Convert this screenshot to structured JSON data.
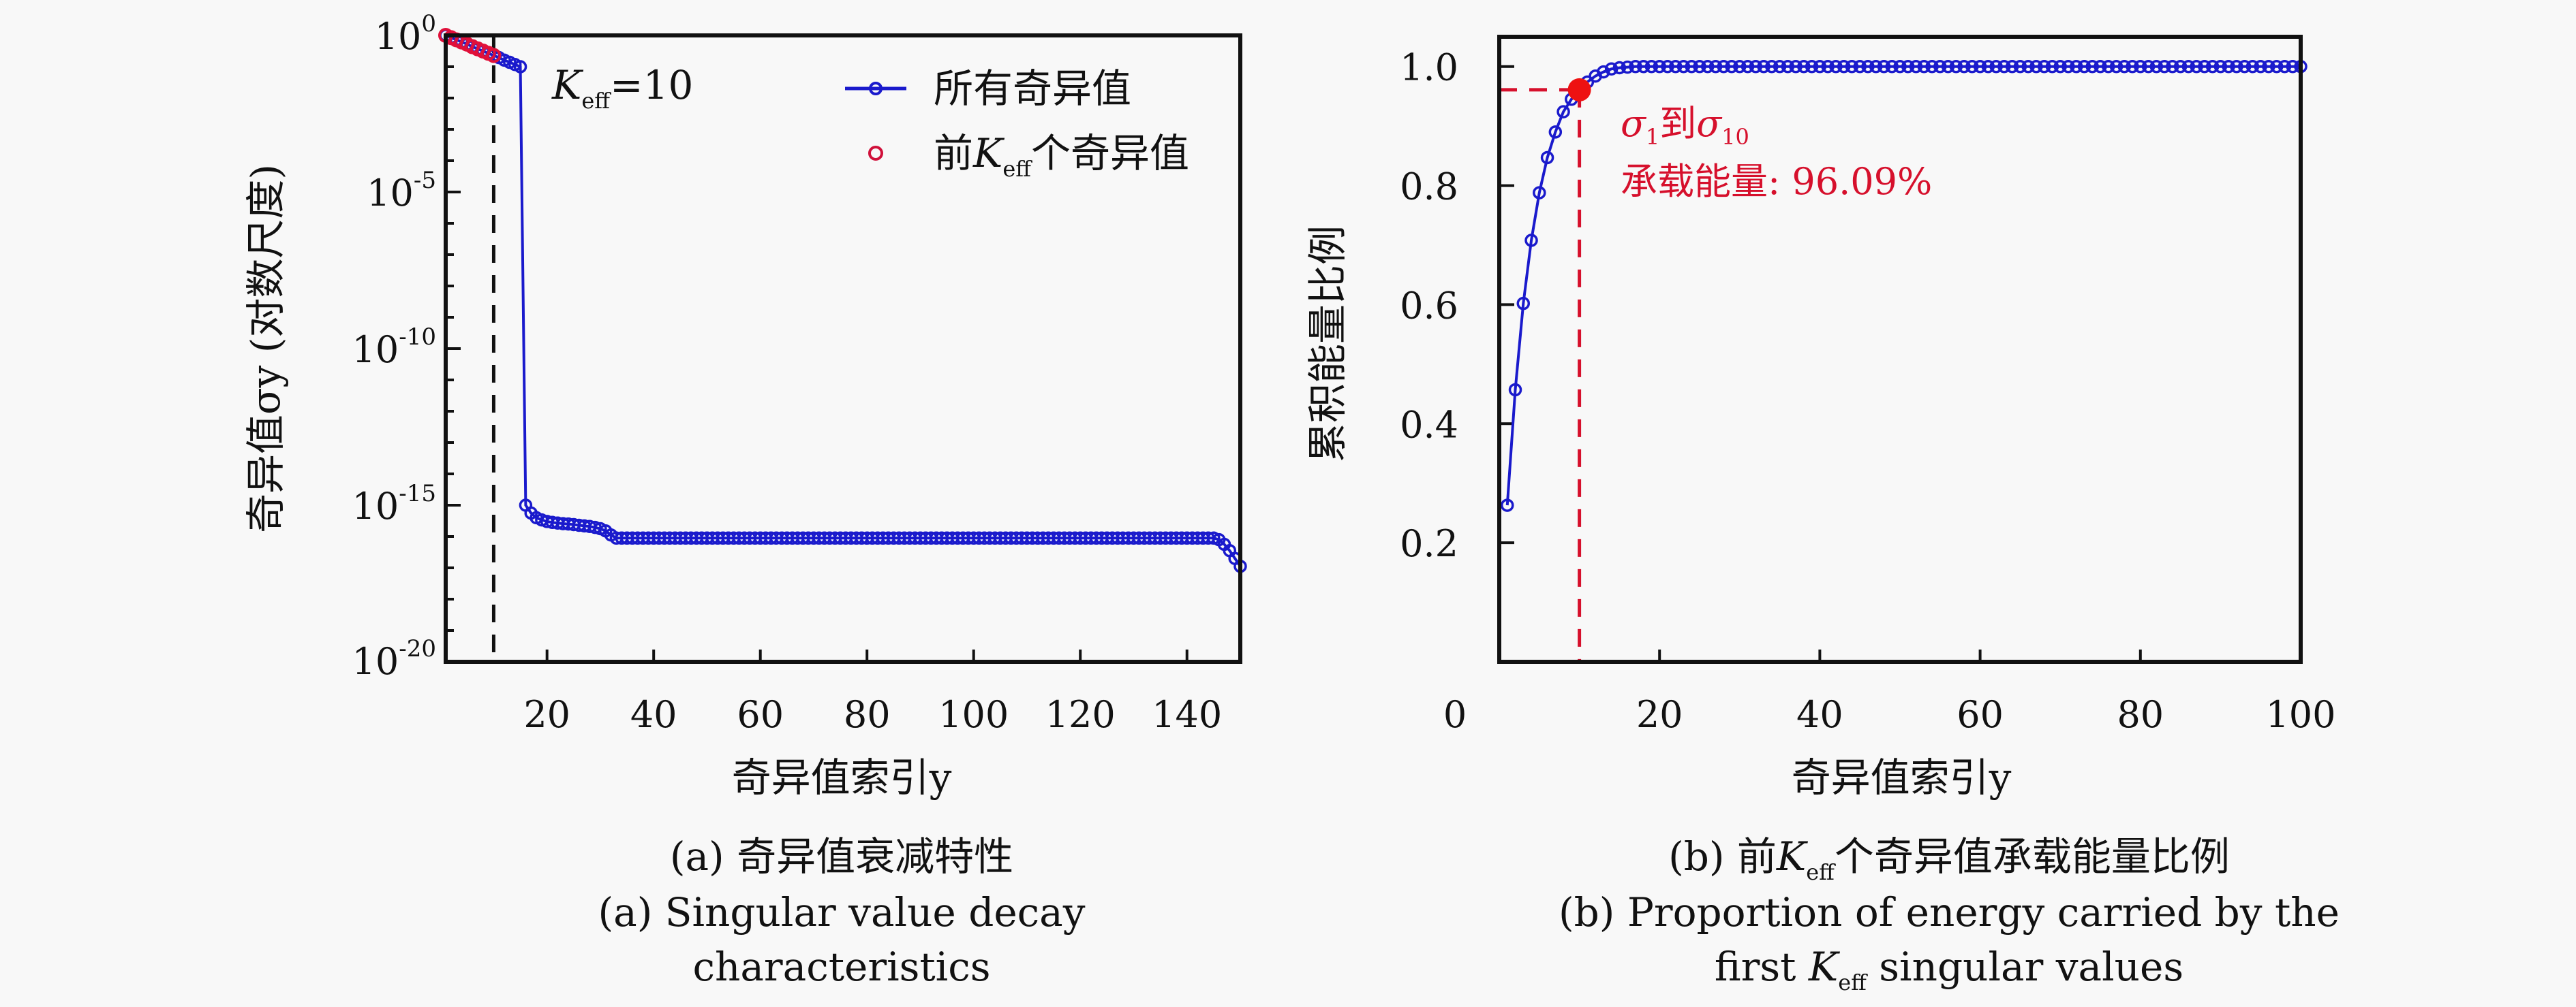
{
  "figure": {
    "background": "#f8f8f8",
    "colors": {
      "all_series": "#1a1acc",
      "top_k": "#e0103a",
      "annotation": "#d6102c",
      "axis": "#111111"
    }
  },
  "chart_data": [
    {
      "id": "a",
      "type": "line",
      "title": "",
      "xlabel": "奇异值索引y",
      "ylabel": "奇异值σy (对数尺度)",
      "yscale": "log",
      "xlim": [
        1,
        150
      ],
      "ylim_log10": [
        -20,
        0
      ],
      "xticks": [
        20,
        40,
        60,
        80,
        100,
        120,
        140
      ],
      "xtick_labels": [
        "20",
        "40",
        "60",
        "80",
        "100",
        "120",
        "140"
      ],
      "yticks_log10": [
        0,
        -5,
        -10,
        -15,
        -20
      ],
      "ytick_labels": [
        {
          "base": "10",
          "exp": "0"
        },
        {
          "base": "10",
          "exp": "-5"
        },
        {
          "base": "10",
          "exp": "-10"
        },
        {
          "base": "10",
          "exp": "-15"
        },
        {
          "base": "10",
          "exp": "-20"
        }
      ],
      "grid": false,
      "legend_position": "top-right",
      "annotation": {
        "text": "Keff=10",
        "k_label": "K",
        "k_sub": "eff",
        "value": "=10"
      },
      "vline_x": 10,
      "k_eff": 10,
      "series": [
        {
          "name": "所有奇异值",
          "legend_label": "所有奇异值",
          "marker": "open-circle",
          "line": true,
          "x_start": 1,
          "log10_values": [
            0.0,
            -0.07,
            -0.14,
            -0.21,
            -0.28,
            -0.36,
            -0.43,
            -0.5,
            -0.57,
            -0.64,
            -0.71,
            -0.79,
            -0.86,
            -0.93,
            -1.0,
            -15.0,
            -15.25,
            -15.4,
            -15.47,
            -15.52,
            -15.55,
            -15.57,
            -15.59,
            -15.6,
            -15.62,
            -15.64,
            -15.66,
            -15.68,
            -15.71,
            -15.75,
            -15.82,
            -15.95,
            -16.05,
            -16.05,
            -16.05,
            -16.05,
            -16.05,
            -16.05,
            -16.05,
            -16.05,
            -16.05,
            -16.05,
            -16.05,
            -16.05,
            -16.05,
            -16.05,
            -16.05,
            -16.05,
            -16.05,
            -16.05,
            -16.05,
            -16.05,
            -16.05,
            -16.05,
            -16.05,
            -16.05,
            -16.05,
            -16.05,
            -16.05,
            -16.05,
            -16.05,
            -16.05,
            -16.05,
            -16.05,
            -16.05,
            -16.05,
            -16.05,
            -16.05,
            -16.05,
            -16.05,
            -16.05,
            -16.05,
            -16.05,
            -16.05,
            -16.05,
            -16.05,
            -16.05,
            -16.05,
            -16.05,
            -16.05,
            -16.05,
            -16.05,
            -16.05,
            -16.05,
            -16.05,
            -16.05,
            -16.05,
            -16.05,
            -16.05,
            -16.05,
            -16.05,
            -16.05,
            -16.05,
            -16.05,
            -16.05,
            -16.05,
            -16.05,
            -16.05,
            -16.05,
            -16.05,
            -16.05,
            -16.05,
            -16.05,
            -16.05,
            -16.05,
            -16.05,
            -16.05,
            -16.05,
            -16.05,
            -16.05,
            -16.05,
            -16.05,
            -16.05,
            -16.05,
            -16.05,
            -16.05,
            -16.05,
            -16.05,
            -16.05,
            -16.05,
            -16.05,
            -16.05,
            -16.05,
            -16.05,
            -16.05,
            -16.05,
            -16.05,
            -16.05,
            -16.05,
            -16.05,
            -16.05,
            -16.05,
            -16.05,
            -16.05,
            -16.05,
            -16.05,
            -16.05,
            -16.05,
            -16.05,
            -16.05,
            -16.05,
            -16.05,
            -16.05,
            -16.05,
            -16.05,
            -16.1,
            -16.25,
            -16.45,
            -16.7,
            -16.95
          ]
        },
        {
          "name": "前Keff个奇异值",
          "legend_label_prefix": "前",
          "legend_label_k": "K",
          "legend_label_sub": "eff",
          "legend_label_suffix": "个奇异值",
          "marker": "open-circle",
          "line": false,
          "x_start": 1,
          "log10_values": [
            0.0,
            -0.07,
            -0.14,
            -0.21,
            -0.28,
            -0.36,
            -0.43,
            -0.5,
            -0.57,
            -0.64
          ]
        }
      ],
      "caption_cn": {
        "prefix": "(a)",
        "text": "奇异值衰减特性"
      },
      "caption_en_line1": "(a) Singular value decay",
      "caption_en_line2": "characteristics"
    },
    {
      "id": "b",
      "type": "line",
      "title": "",
      "xlabel": "奇异值索引y",
      "ylabel": "累积能量比例",
      "xlim": [
        0,
        100
      ],
      "ylim": [
        0,
        1.05
      ],
      "xticks": [
        0,
        20,
        40,
        60,
        80,
        100
      ],
      "xtick_labels": [
        "0",
        "20",
        "40",
        "60",
        "80",
        "100"
      ],
      "yticks": [
        0.2,
        0.4,
        0.6,
        0.8,
        1.0
      ],
      "ytick_labels": [
        "0.2",
        "0.4",
        "0.6",
        "0.8",
        "1.0"
      ],
      "grid": false,
      "series": [
        {
          "name": "累积能量比例",
          "marker": "open-circle",
          "x_start": 1,
          "values": [
            0.263,
            0.457,
            0.602,
            0.708,
            0.788,
            0.847,
            0.89,
            0.924,
            0.945,
            0.9609,
            0.974,
            0.984,
            0.991,
            0.996,
            0.998,
            0.999,
            1.0,
            1.0,
            1.0,
            1.0,
            1.0,
            1.0,
            1.0,
            1.0,
            1.0,
            1.0,
            1.0,
            1.0,
            1.0,
            1.0,
            1.0,
            1.0,
            1.0,
            1.0,
            1.0,
            1.0,
            1.0,
            1.0,
            1.0,
            1.0,
            1.0,
            1.0,
            1.0,
            1.0,
            1.0,
            1.0,
            1.0,
            1.0,
            1.0,
            1.0,
            1.0,
            1.0,
            1.0,
            1.0,
            1.0,
            1.0,
            1.0,
            1.0,
            1.0,
            1.0,
            1.0,
            1.0,
            1.0,
            1.0,
            1.0,
            1.0,
            1.0,
            1.0,
            1.0,
            1.0,
            1.0,
            1.0,
            1.0,
            1.0,
            1.0,
            1.0,
            1.0,
            1.0,
            1.0,
            1.0,
            1.0,
            1.0,
            1.0,
            1.0,
            1.0,
            1.0,
            1.0,
            1.0,
            1.0,
            1.0,
            1.0,
            1.0,
            1.0,
            1.0,
            1.0,
            1.0,
            1.0,
            1.0,
            1.0,
            1.0
          ]
        }
      ],
      "highlight_point": {
        "x": 10,
        "y": 0.9609
      },
      "annotation": {
        "line1_sigma": "σ",
        "line1_sub1": "1",
        "line1_mid": "到",
        "line1_sub2": "10",
        "line2": "承载能量: 96.09%"
      },
      "caption_cn": {
        "prefix": "(b) 前",
        "k": "K",
        "k_sub": "eff",
        "text": "个奇异值承载能量比例"
      },
      "caption_en_line1": "(b) Proportion of energy carried by the",
      "caption_en_line2_prefix": "first ",
      "caption_en_line2_k": "K",
      "caption_en_line2_sub": "eff",
      "caption_en_line2_suffix": " singular values"
    }
  ]
}
